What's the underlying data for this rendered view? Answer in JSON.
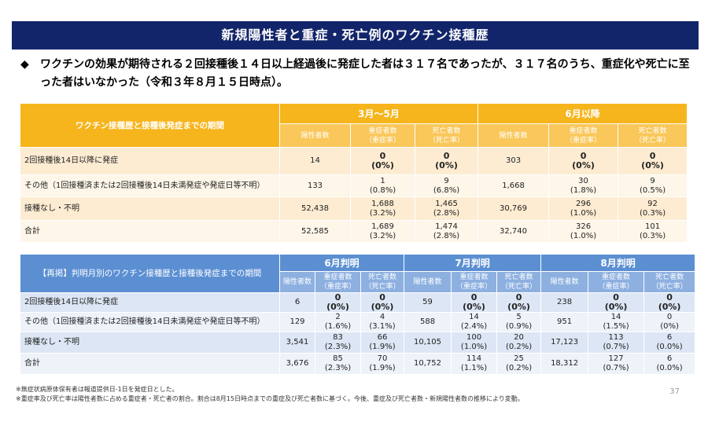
{
  "title": "新規陽性者と重症・死亡例のワクチン接種歴",
  "bullet": {
    "mark": "◆",
    "text": "ワクチンの効果が期待される２回接種後１４日以上経過後に発症した者は３１７名であったが、３１７名のうち、重症化や死亡に至った者はいなかった（令和３年８月１５日時点）。"
  },
  "table1": {
    "corner": "ワクチン接種歴と接種後発症までの期間",
    "groups": [
      "3月～5月",
      "6月以降"
    ],
    "sub_headers": [
      {
        "l1": "陽性者数",
        "l2": ""
      },
      {
        "l1": "重症者数",
        "l2": "（重症率）"
      },
      {
        "l1": "死亡者数",
        "l2": "（死亡率）"
      }
    ],
    "rows": [
      {
        "label": "2回接種後14日以降に発症",
        "cells": [
          [
            "14",
            ""
          ],
          [
            "0",
            "(0%)"
          ],
          [
            "0",
            "(0%)"
          ],
          [
            "303",
            ""
          ],
          [
            "0",
            "(0%)"
          ],
          [
            "0",
            "(0%)"
          ]
        ],
        "bold": true
      },
      {
        "label": "その他（1回接種済または2回接種後14日未満発症や発症日等不明）",
        "cells": [
          [
            "133",
            ""
          ],
          [
            "1",
            "(0.8%)"
          ],
          [
            "9",
            "(6.8%)"
          ],
          [
            "1,668",
            ""
          ],
          [
            "30",
            "(1.8%)"
          ],
          [
            "9",
            "(0.5%)"
          ]
        ],
        "bold": false
      },
      {
        "label": "接種なし・不明",
        "cells": [
          [
            "52,438",
            ""
          ],
          [
            "1,688",
            "(3.2%)"
          ],
          [
            "1,465",
            "(2.8%)"
          ],
          [
            "30,769",
            ""
          ],
          [
            "296",
            "(1.0%)"
          ],
          [
            "92",
            "(0.3%)"
          ]
        ],
        "bold": false
      },
      {
        "label": "合計",
        "cells": [
          [
            "52,585",
            ""
          ],
          [
            "1,689",
            "(3.2%)"
          ],
          [
            "1,474",
            "(2.8%)"
          ],
          [
            "32,740",
            ""
          ],
          [
            "326",
            "(1.0%)"
          ],
          [
            "101",
            "(0.3%)"
          ]
        ],
        "bold": false
      }
    ]
  },
  "table2": {
    "corner": "【再掲】判明月別のワクチン接種歴と接種後発症までの期間",
    "groups": [
      "6月判明",
      "7月判明",
      "8月判明"
    ],
    "sub_headers": [
      {
        "l1": "陽性者数",
        "l2": ""
      },
      {
        "l1": "重症者数",
        "l2": "（重症率）"
      },
      {
        "l1": "死亡者数",
        "l2": "（死亡率）"
      }
    ],
    "rows": [
      {
        "label": "2回接種後14日以降に発症",
        "cells": [
          [
            "6",
            ""
          ],
          [
            "0",
            "(0%)"
          ],
          [
            "0",
            "(0%)"
          ],
          [
            "59",
            ""
          ],
          [
            "0",
            "(0%)"
          ],
          [
            "0",
            "(0%)"
          ],
          [
            "238",
            ""
          ],
          [
            "0",
            "(0%)"
          ],
          [
            "0",
            "(0%)"
          ]
        ],
        "bold": true
      },
      {
        "label": "その他（1回接種済または2回接種後14日未満発症や発症日等不明）",
        "cells": [
          [
            "129",
            ""
          ],
          [
            "2",
            "(1.6%)"
          ],
          [
            "4",
            "(3.1%)"
          ],
          [
            "588",
            ""
          ],
          [
            "14",
            "(2.4%)"
          ],
          [
            "5",
            "(0.9%)"
          ],
          [
            "951",
            ""
          ],
          [
            "14",
            "(1.5%)"
          ],
          [
            "0",
            "(0%)"
          ]
        ],
        "bold": false
      },
      {
        "label": "接種なし・不明",
        "cells": [
          [
            "3,541",
            ""
          ],
          [
            "83",
            "(2.3%)"
          ],
          [
            "66",
            "(1.9%)"
          ],
          [
            "10,105",
            ""
          ],
          [
            "100",
            "(1.0%)"
          ],
          [
            "20",
            "(0.2%)"
          ],
          [
            "17,123",
            ""
          ],
          [
            "113",
            "(0.7%)"
          ],
          [
            "6",
            "(0.0%)"
          ]
        ],
        "bold": false
      },
      {
        "label": "合計",
        "cells": [
          [
            "3,676",
            ""
          ],
          [
            "85",
            "(2.3%)"
          ],
          [
            "70",
            "(1.9%)"
          ],
          [
            "10,752",
            ""
          ],
          [
            "114",
            "(1.1%)"
          ],
          [
            "25",
            "(0.2%)"
          ],
          [
            "18,312",
            ""
          ],
          [
            "127",
            "(0.7%)"
          ],
          [
            "6",
            "(0.0%)"
          ]
        ],
        "bold": false
      }
    ]
  },
  "notes": [
    "※無症状病原体保有者は報道提供日-1日を発症日とした。",
    "※重症率及び死亡率は陽性者数に占める重症者・死亡者の割合。割合は8月15日時点までの重症及び死亡者数に基づく。今後、重症及び死亡者数・新規陽性者数の推移により変動。"
  ],
  "page_number": "37",
  "colors": {
    "title_bg": "#13256a",
    "table1_header": "#f6b51c",
    "table2_header": "#5b8fd2"
  }
}
